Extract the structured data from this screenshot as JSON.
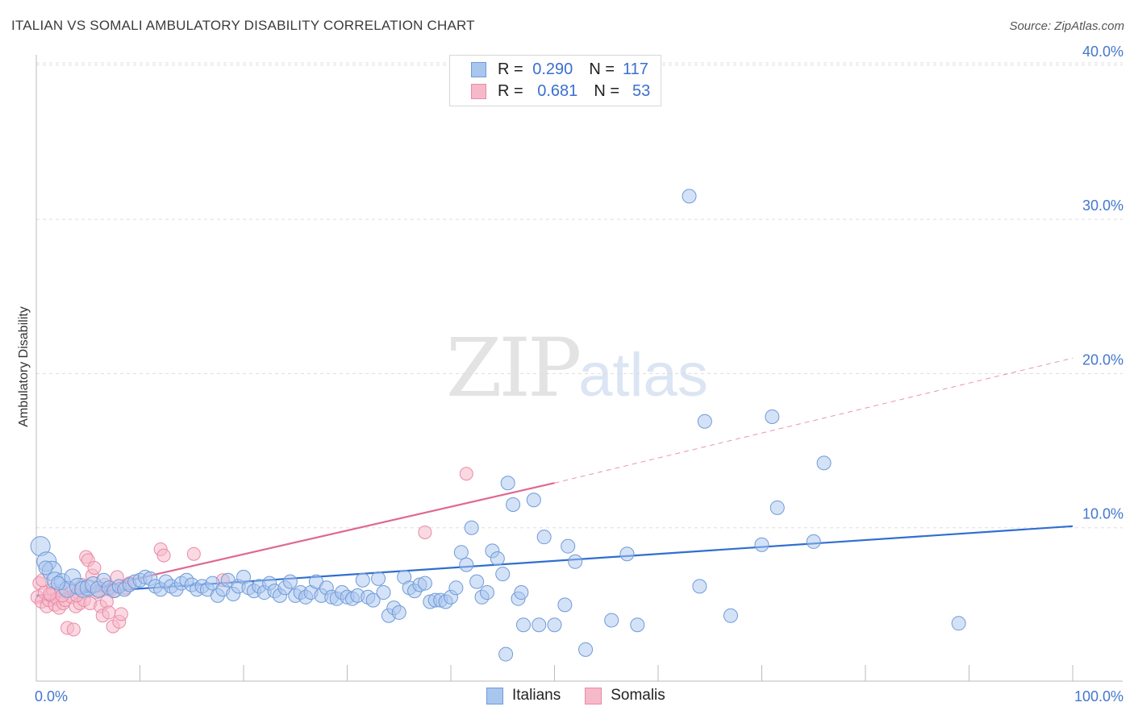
{
  "header": {
    "title": "ITALIAN VS SOMALI AMBULATORY DISABILITY CORRELATION CHART",
    "source": "Source: ZipAtlas.com"
  },
  "watermark": {
    "zip": "ZIP",
    "atlas": "atlas"
  },
  "legend": {
    "italians": {
      "r_label": "R =",
      "r_value": "0.290",
      "n_label": "N =",
      "n_value": "117"
    },
    "somalis": {
      "r_label": "R =",
      "r_value": "0.681",
      "n_label": "N =",
      "n_value": "53"
    }
  },
  "bottom_legend": {
    "italians": "Italians",
    "somalis": "Somalis"
  },
  "colors": {
    "italians_fill": "#a9c6ef",
    "italians_stroke": "#6f9ad8",
    "italians_line": "#2f6fd0",
    "somalis_fill": "#f6b9ca",
    "somalis_stroke": "#e98aa6",
    "somalis_line": "#e06890",
    "tick_text": "#4477cc",
    "grid": "#dddddd"
  },
  "chart_data": {
    "type": "scatter",
    "title": "ITALIAN VS SOMALI AMBULATORY DISABILITY CORRELATION CHART",
    "xlabel": "",
    "ylabel": "Ambulatory Disability",
    "xlim": [
      0,
      100
    ],
    "ylim": [
      0,
      42
    ],
    "x_ticks": [
      0,
      10,
      20,
      30,
      40,
      50,
      60,
      70,
      80,
      90,
      100
    ],
    "x_tick_labels": {
      "0": "0.0%",
      "100": "100.0%"
    },
    "y_ticks": [
      10,
      20,
      30,
      40
    ],
    "y_tick_labels": [
      "10.0%",
      "20.0%",
      "30.0%",
      "40.0%"
    ],
    "grid": "horizontal dashed",
    "legend_position": "top-center",
    "series": [
      {
        "name": "Italians",
        "r": 0.29,
        "n": 117,
        "trend": {
          "x": [
            0,
            100
          ],
          "y": [
            5.6,
            10.1
          ],
          "style": "solid"
        },
        "points": [
          [
            0.4,
            8.8
          ],
          [
            1.0,
            7.8
          ],
          [
            1.5,
            7.2
          ],
          [
            1.8,
            6.6
          ],
          [
            2.5,
            6.5
          ],
          [
            3.0,
            6.0
          ],
          [
            3.5,
            6.8
          ],
          [
            4.0,
            6.2
          ],
          [
            4.5,
            6.0
          ],
          [
            5.0,
            6.1
          ],
          [
            5.5,
            6.3
          ],
          [
            6.0,
            6.0
          ],
          [
            6.5,
            6.6
          ],
          [
            7.0,
            6.1
          ],
          [
            7.5,
            5.9
          ],
          [
            8.0,
            6.2
          ],
          [
            8.5,
            6.0
          ],
          [
            9.0,
            6.3
          ],
          [
            9.5,
            6.5
          ],
          [
            10.0,
            6.6
          ],
          [
            10.5,
            6.8
          ],
          [
            11.0,
            6.7
          ],
          [
            11.5,
            6.2
          ],
          [
            12.0,
            6.0
          ],
          [
            12.5,
            6.5
          ],
          [
            13.0,
            6.2
          ],
          [
            13.5,
            6.0
          ],
          [
            14.0,
            6.4
          ],
          [
            14.5,
            6.6
          ],
          [
            15.0,
            6.3
          ],
          [
            15.5,
            6.0
          ],
          [
            16.0,
            6.2
          ],
          [
            16.5,
            6.0
          ],
          [
            17.0,
            6.4
          ],
          [
            17.5,
            5.6
          ],
          [
            18.0,
            6.0
          ],
          [
            18.5,
            6.6
          ],
          [
            19.0,
            5.7
          ],
          [
            19.5,
            6.2
          ],
          [
            20.0,
            6.8
          ],
          [
            20.5,
            6.1
          ],
          [
            21.0,
            5.9
          ],
          [
            21.5,
            6.2
          ],
          [
            22.0,
            5.8
          ],
          [
            22.5,
            6.4
          ],
          [
            23.0,
            5.9
          ],
          [
            23.5,
            5.6
          ],
          [
            24.0,
            6.1
          ],
          [
            24.5,
            6.5
          ],
          [
            25.0,
            5.6
          ],
          [
            25.5,
            5.8
          ],
          [
            26.0,
            5.5
          ],
          [
            26.5,
            5.8
          ],
          [
            27.0,
            6.5
          ],
          [
            27.5,
            5.6
          ],
          [
            28.0,
            6.1
          ],
          [
            28.5,
            5.5
          ],
          [
            29.0,
            5.4
          ],
          [
            29.5,
            5.8
          ],
          [
            30.0,
            5.5
          ],
          [
            30.5,
            5.4
          ],
          [
            31.0,
            5.6
          ],
          [
            31.5,
            6.6
          ],
          [
            32.0,
            5.5
          ],
          [
            32.5,
            5.3
          ],
          [
            33.0,
            6.7
          ],
          [
            33.5,
            5.8
          ],
          [
            34.0,
            4.3
          ],
          [
            34.5,
            4.8
          ],
          [
            35.0,
            4.5
          ],
          [
            35.5,
            6.8
          ],
          [
            36.0,
            6.1
          ],
          [
            36.5,
            5.9
          ],
          [
            37.0,
            6.3
          ],
          [
            37.5,
            6.4
          ],
          [
            38.0,
            5.2
          ],
          [
            38.5,
            5.3
          ],
          [
            39.0,
            5.3
          ],
          [
            39.5,
            5.2
          ],
          [
            40.0,
            5.5
          ],
          [
            40.5,
            6.1
          ],
          [
            41.0,
            8.4
          ],
          [
            41.5,
            7.6
          ],
          [
            42.0,
            10.0
          ],
          [
            42.5,
            6.5
          ],
          [
            43.0,
            5.5
          ],
          [
            43.5,
            5.8
          ],
          [
            44.0,
            8.5
          ],
          [
            44.5,
            8.0
          ],
          [
            45.0,
            7.0
          ],
          [
            45.5,
            12.9
          ],
          [
            46.0,
            11.5
          ],
          [
            46.5,
            5.4
          ],
          [
            46.8,
            5.8
          ],
          [
            47.0,
            3.7
          ],
          [
            48.0,
            11.8
          ],
          [
            48.5,
            3.7
          ],
          [
            49.0,
            9.4
          ],
          [
            50.0,
            3.7
          ],
          [
            51.0,
            5.0
          ],
          [
            51.3,
            8.8
          ],
          [
            52.0,
            7.8
          ],
          [
            53.0,
            2.1
          ],
          [
            55.5,
            4.0
          ],
          [
            57.0,
            8.3
          ],
          [
            58.0,
            3.7
          ],
          [
            63.0,
            31.5
          ],
          [
            64.0,
            6.2
          ],
          [
            64.5,
            16.9
          ],
          [
            67.0,
            4.3
          ],
          [
            70.0,
            8.9
          ],
          [
            71.0,
            17.2
          ],
          [
            71.5,
            11.3
          ],
          [
            75.0,
            9.1
          ],
          [
            76.0,
            14.2
          ],
          [
            89.0,
            3.8
          ],
          [
            45.3,
            1.8
          ],
          [
            0.9,
            7.4
          ],
          [
            2.1,
            6.4
          ]
        ]
      },
      {
        "name": "Somalis",
        "r": 0.681,
        "n": 53,
        "trend": {
          "x": [
            0,
            50
          ],
          "y": [
            5.2,
            12.9
          ],
          "style": "solid",
          "extension": {
            "x": [
              50,
              100
            ],
            "y": [
              12.9,
              21.0
            ],
            "style": "dashed"
          }
        },
        "points": [
          [
            0.1,
            5.5
          ],
          [
            0.3,
            6.4
          ],
          [
            0.5,
            5.2
          ],
          [
            0.8,
            5.8
          ],
          [
            1.0,
            4.9
          ],
          [
            1.2,
            5.3
          ],
          [
            1.4,
            5.6
          ],
          [
            1.6,
            6.0
          ],
          [
            1.8,
            5.0
          ],
          [
            2.0,
            5.4
          ],
          [
            2.2,
            4.8
          ],
          [
            2.4,
            5.9
          ],
          [
            2.6,
            5.1
          ],
          [
            2.8,
            5.3
          ],
          [
            3.0,
            3.5
          ],
          [
            3.2,
            6.1
          ],
          [
            3.4,
            5.5
          ],
          [
            3.6,
            3.4
          ],
          [
            3.8,
            4.9
          ],
          [
            4.0,
            5.8
          ],
          [
            4.2,
            5.1
          ],
          [
            4.4,
            6.3
          ],
          [
            4.6,
            5.3
          ],
          [
            4.8,
            8.1
          ],
          [
            5.0,
            7.9
          ],
          [
            5.2,
            5.1
          ],
          [
            5.4,
            6.9
          ],
          [
            5.6,
            7.4
          ],
          [
            5.8,
            5.8
          ],
          [
            6.0,
            5.9
          ],
          [
            6.2,
            4.9
          ],
          [
            6.4,
            4.3
          ],
          [
            6.6,
            6.3
          ],
          [
            6.8,
            5.2
          ],
          [
            7.0,
            4.5
          ],
          [
            7.2,
            6.0
          ],
          [
            7.4,
            3.6
          ],
          [
            7.6,
            5.9
          ],
          [
            7.8,
            6.8
          ],
          [
            8.0,
            3.9
          ],
          [
            8.2,
            4.4
          ],
          [
            8.6,
            6.1
          ],
          [
            9.0,
            6.4
          ],
          [
            12.0,
            8.6
          ],
          [
            12.3,
            8.2
          ],
          [
            15.2,
            8.3
          ],
          [
            18.0,
            6.6
          ],
          [
            37.5,
            9.7
          ],
          [
            41.5,
            13.5
          ],
          [
            0.6,
            6.6
          ],
          [
            1.3,
            5.7
          ],
          [
            2.5,
            5.6
          ],
          [
            3.9,
            5.6
          ]
        ]
      }
    ]
  }
}
